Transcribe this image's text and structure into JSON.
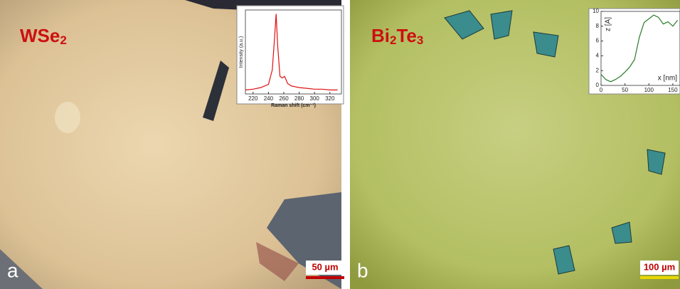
{
  "panels": [
    {
      "label": "a",
      "material": [
        "WSe",
        "2"
      ],
      "scale_bar": "50 µm",
      "inset": {
        "type": "line",
        "xlabel": "Raman shift (cm⁻¹)",
        "ylabel": "Intensity (a.u.)",
        "x": [
          210,
          220,
          230,
          240,
          245,
          248,
          250,
          252,
          255,
          258,
          261,
          265,
          270,
          280,
          290,
          300,
          310,
          320,
          330
        ],
        "values": [
          0.05,
          0.06,
          0.08,
          0.12,
          0.3,
          0.7,
          1.0,
          0.6,
          0.22,
          0.2,
          0.22,
          0.13,
          0.1,
          0.08,
          0.07,
          0.06,
          0.06,
          0.05,
          0.05
        ],
        "xlim": [
          210,
          335
        ],
        "ylim": [
          0,
          1.05
        ],
        "xticks": [
          220,
          240,
          260,
          280,
          300,
          320
        ],
        "color": "#e01010"
      }
    },
    {
      "label": "b",
      "material": [
        "Bi",
        "2",
        "Te",
        "3"
      ],
      "scale_bar": "100 µm",
      "inset": {
        "type": "line",
        "xlabel": "x [nm]",
        "ylabel": "z [A]",
        "x": [
          0,
          10,
          20,
          30,
          40,
          50,
          60,
          70,
          80,
          90,
          100,
          110,
          120,
          130,
          140,
          150,
          160
        ],
        "values": [
          1.5,
          0.8,
          0.5,
          0.8,
          1.2,
          1.8,
          2.5,
          3.5,
          6.5,
          8.5,
          9.0,
          9.5,
          9.2,
          8.3,
          8.6,
          8.0,
          8.8
        ],
        "xlim": [
          0,
          165
        ],
        "ylim": [
          0,
          10
        ],
        "xticks": [
          0,
          50,
          100,
          150
        ],
        "yticks": [
          0,
          2,
          4,
          6,
          8,
          10
        ],
        "color": "#2a7a2a"
      }
    }
  ]
}
